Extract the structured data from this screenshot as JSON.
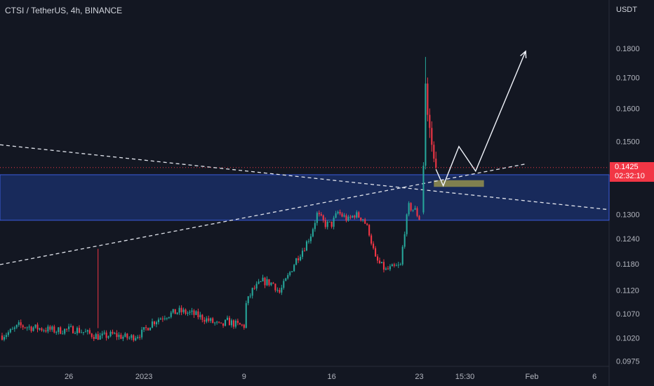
{
  "header": {
    "symbol": "CTSI / TetherUS, 4h, BINANCE",
    "currency": "USDT"
  },
  "price_tag": {
    "price": "0.1425",
    "countdown": "02:32:10"
  },
  "colors": {
    "up": "#26a69a",
    "down": "#f23645",
    "background": "#131722",
    "zone": "#1e3a8a",
    "target_box": "#8d8a4e"
  },
  "chart_data": {
    "type": "candlestick",
    "timeframe": "4h",
    "y_tick_labels": [
      "0.1800",
      "0.1700",
      "0.1600",
      "0.1500",
      "0.1300",
      "0.1240",
      "0.1180",
      "0.1120",
      "0.1070",
      "0.1020",
      "0.0975"
    ],
    "y_scale": "log",
    "y_range": [
      0.0965,
      0.192
    ],
    "x_tick_labels": [
      "26",
      "2023",
      "9",
      "16",
      "23",
      "15:30",
      "Feb",
      "6"
    ],
    "x_start": "2022-12-20T12:00",
    "x_end": "2023-02-07T04:00",
    "last_price": 0.1425,
    "volume_bars": false,
    "anchors": [
      [
        "2022-12-20T16:00",
        0.1025
      ],
      [
        "2022-12-21T12:00",
        0.1035
      ],
      [
        "2022-12-22T00:00",
        0.1045
      ],
      [
        "2022-12-23T12:00",
        0.104
      ],
      [
        "2022-12-25T00:00",
        0.1035
      ],
      [
        "2022-12-26T12:00",
        0.1038
      ],
      [
        "2022-12-27T16:00",
        0.1028
      ],
      [
        "2022-12-28T12:00",
        0.1022
      ],
      [
        "2022-12-29T12:00",
        0.1027
      ],
      [
        "2022-12-30T20:00",
        0.102
      ],
      [
        "2022-12-31T20:00",
        0.103
      ],
      [
        "2023-01-01T16:00",
        0.1052
      ],
      [
        "2023-01-02T16:00",
        0.1066
      ],
      [
        "2023-01-03T20:00",
        0.1075
      ],
      [
        "2023-01-04T20:00",
        0.107
      ],
      [
        "2023-01-05T16:00",
        0.1062
      ],
      [
        "2023-01-06T16:00",
        0.105
      ],
      [
        "2023-01-07T04:00",
        0.1043
      ],
      [
        "2023-01-07T16:00",
        0.1054
      ],
      [
        "2023-01-08T12:00",
        0.1046
      ],
      [
        "2023-01-09T00:00",
        0.1045
      ],
      [
        "2023-01-09T04:00",
        0.109
      ],
      [
        "2023-01-09T16:00",
        0.112
      ],
      [
        "2023-01-10T12:00",
        0.114
      ],
      [
        "2023-01-11T08:00",
        0.1135
      ],
      [
        "2023-01-11T20:00",
        0.1115
      ],
      [
        "2023-01-12T12:00",
        0.115
      ],
      [
        "2023-01-13T04:00",
        0.119
      ],
      [
        "2023-01-13T20:00",
        0.122
      ],
      [
        "2023-01-14T08:00",
        0.125
      ],
      [
        "2023-01-14T20:00",
        0.13
      ],
      [
        "2023-01-15T12:00",
        0.1275
      ],
      [
        "2023-01-16T00:00",
        0.1275
      ],
      [
        "2023-01-16T12:00",
        0.1305
      ],
      [
        "2023-01-17T08:00",
        0.1285
      ],
      [
        "2023-01-17T20:00",
        0.13
      ],
      [
        "2023-01-18T12:00",
        0.129
      ],
      [
        "2023-01-19T00:00",
        0.1255
      ],
      [
        "2023-01-19T12:00",
        0.119
      ],
      [
        "2023-01-20T08:00",
        0.1165
      ],
      [
        "2023-01-20T20:00",
        0.117
      ],
      [
        "2023-01-21T12:00",
        0.1175
      ],
      [
        "2023-01-21T20:00",
        0.126
      ],
      [
        "2023-01-22T04:00",
        0.132
      ],
      [
        "2023-01-22T16:00",
        0.131
      ],
      [
        "2023-01-23T00:00",
        0.129
      ],
      [
        "2023-01-23T04:00",
        0.131
      ]
    ],
    "candles": [
      [
        "2023-01-23T08:00",
        0.1305,
        0.144,
        0.13,
        0.143
      ],
      [
        "2023-01-23T12:00",
        0.143,
        0.177,
        0.142,
        0.168
      ],
      [
        "2023-01-23T16:00",
        0.168,
        0.17,
        0.156,
        0.158
      ],
      [
        "2023-01-23T20:00",
        0.158,
        0.16,
        0.151,
        0.154
      ],
      [
        "2023-01-24T00:00",
        0.154,
        0.156,
        0.147,
        0.149
      ],
      [
        "2023-01-24T04:00",
        0.149,
        0.15,
        0.144,
        0.145
      ],
      [
        "2023-01-24T08:00",
        0.145,
        0.147,
        0.142,
        0.1425
      ]
    ],
    "wicks": [
      [
        "2022-12-28T08:00",
        0.104,
        0.1215
      ]
    ],
    "annotations": {
      "support_zone": {
        "from": 0.1285,
        "to": 0.1405
      },
      "target_box": {
        "from_time": "2023-01-24T04:00",
        "to_time": "2023-01-28T04:00",
        "from": 0.1372,
        "to": 0.139
      },
      "descending_line": {
        "from": [
          "2022-12-20T12:00",
          0.149
        ],
        "to": [
          "2023-02-07T04:00",
          0.1312
        ]
      },
      "ascending_line": {
        "from": [
          "2022-12-20T12:00",
          0.1178
        ],
        "to": [
          "2023-01-31T12:00",
          0.1435
        ]
      },
      "projection_path": [
        [
          "2023-01-24T08:00",
          0.142
        ],
        [
          "2023-01-24T22:00",
          0.1375
        ],
        [
          "2023-01-26T04:00",
          0.1485
        ],
        [
          "2023-01-27T12:00",
          0.1415
        ],
        [
          "2023-01-31T12:00",
          0.179
        ]
      ],
      "last_price_line": 0.1425
    }
  }
}
